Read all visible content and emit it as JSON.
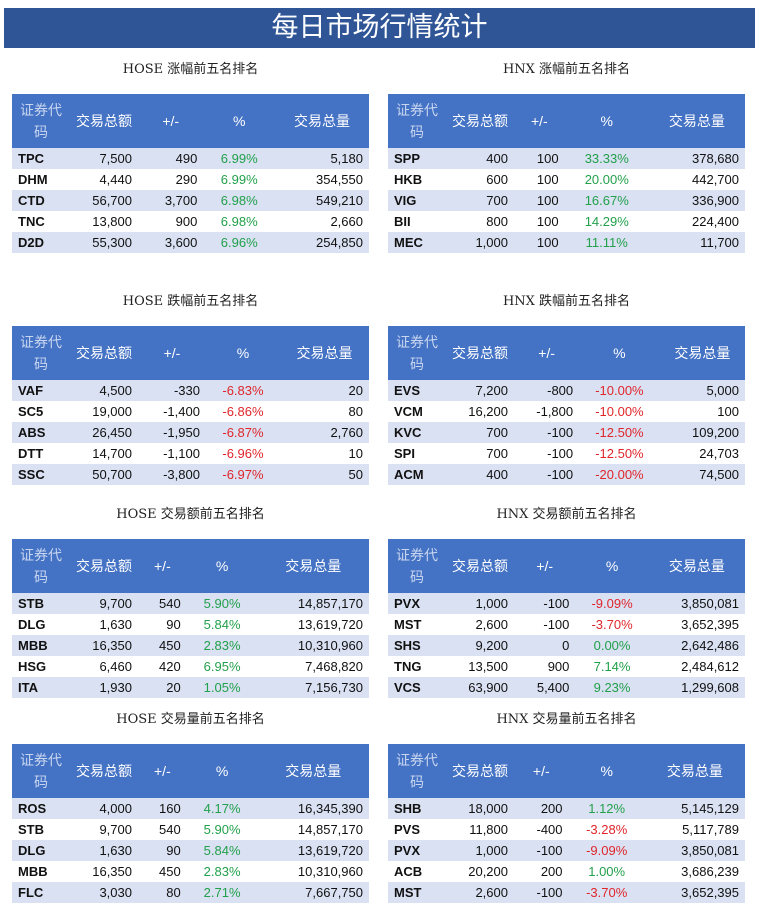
{
  "title": "每日市场行情统计",
  "headers": [
    "证券代码",
    "交易总额",
    "+/-",
    "%",
    "交易总量"
  ],
  "tables": [
    {
      "title": "HOSE 涨幅前五名排名",
      "rows": [
        [
          "TPC",
          "7,500",
          "490",
          "6.99%",
          "5,180"
        ],
        [
          "DHM",
          "4,440",
          "290",
          "6.99%",
          "354,550"
        ],
        [
          "CTD",
          "56,700",
          "3,700",
          "6.98%",
          "549,210"
        ],
        [
          "TNC",
          "13,800",
          "900",
          "6.98%",
          "2,660"
        ],
        [
          "D2D",
          "55,300",
          "3,600",
          "6.96%",
          "254,850"
        ]
      ]
    },
    {
      "title": "HNX 涨幅前五名排名",
      "rows": [
        [
          "SPP",
          "400",
          "100",
          "33.33%",
          "378,680"
        ],
        [
          "HKB",
          "600",
          "100",
          "20.00%",
          "442,700"
        ],
        [
          "VIG",
          "700",
          "100",
          "16.67%",
          "336,900"
        ],
        [
          "BII",
          "800",
          "100",
          "14.29%",
          "224,400"
        ],
        [
          "MEC",
          "1,000",
          "100",
          "11.11%",
          "11,700"
        ]
      ]
    },
    {
      "title": "HOSE 跌幅前五名排名",
      "rows": [
        [
          "VAF",
          "4,500",
          "-330",
          "-6.83%",
          "20"
        ],
        [
          "SC5",
          "19,000",
          "-1,400",
          "-6.86%",
          "80"
        ],
        [
          "ABS",
          "26,450",
          "-1,950",
          "-6.87%",
          "2,760"
        ],
        [
          "DTT",
          "14,700",
          "-1,100",
          "-6.96%",
          "10"
        ],
        [
          "SSC",
          "50,700",
          "-3,800",
          "-6.97%",
          "50"
        ]
      ]
    },
    {
      "title": "HNX 跌幅前五名排名",
      "rows": [
        [
          "EVS",
          "7,200",
          "-800",
          "-10.00%",
          "5,000"
        ],
        [
          "VCM",
          "16,200",
          "-1,800",
          "-10.00%",
          "100"
        ],
        [
          "KVC",
          "700",
          "-100",
          "-12.50%",
          "109,200"
        ],
        [
          "SPI",
          "700",
          "-100",
          "-12.50%",
          "24,703"
        ],
        [
          "ACM",
          "400",
          "-100",
          "-20.00%",
          "74,500"
        ]
      ]
    },
    {
      "title": "HOSE 交易额前五名排名",
      "rows": [
        [
          "STB",
          "9,700",
          "540",
          "5.90%",
          "14,857,170"
        ],
        [
          "DLG",
          "1,630",
          "90",
          "5.84%",
          "13,619,720"
        ],
        [
          "MBB",
          "16,350",
          "450",
          "2.83%",
          "10,310,960"
        ],
        [
          "HSG",
          "6,460",
          "420",
          "6.95%",
          "7,468,820"
        ],
        [
          "ITA",
          "1,930",
          "20",
          "1.05%",
          "7,156,730"
        ]
      ]
    },
    {
      "title": "HNX 交易额前五名排名",
      "rows": [
        [
          "PVX",
          "1,000",
          "-100",
          "-9.09%",
          "3,850,081"
        ],
        [
          "MST",
          "2,600",
          "-100",
          "-3.70%",
          "3,652,395"
        ],
        [
          "SHS",
          "9,200",
          "0",
          "0.00%",
          "2,642,486"
        ],
        [
          "TNG",
          "13,500",
          "900",
          "7.14%",
          "2,484,612"
        ],
        [
          "VCS",
          "63,900",
          "5,400",
          "9.23%",
          "1,299,608"
        ]
      ]
    },
    {
      "title": "HOSE 交易量前五名排名",
      "rows": [
        [
          "ROS",
          "4,000",
          "160",
          "4.17%",
          "16,345,390"
        ],
        [
          "STB",
          "9,700",
          "540",
          "5.90%",
          "14,857,170"
        ],
        [
          "DLG",
          "1,630",
          "90",
          "5.84%",
          "13,619,720"
        ],
        [
          "MBB",
          "16,350",
          "450",
          "2.83%",
          "10,310,960"
        ],
        [
          "FLC",
          "3,030",
          "80",
          "2.71%",
          "7,667,750"
        ]
      ]
    },
    {
      "title": "HNX 交易量前五名排名",
      "rows": [
        [
          "SHB",
          "18,000",
          "200",
          "1.12%",
          "5,145,129"
        ],
        [
          "PVS",
          "11,800",
          "-400",
          "-3.28%",
          "5,117,789"
        ],
        [
          "PVX",
          "1,000",
          "-100",
          "-9.09%",
          "3,850,081"
        ],
        [
          "ACB",
          "20,200",
          "200",
          "1.00%",
          "3,686,239"
        ],
        [
          "MST",
          "2,600",
          "-100",
          "-3.70%",
          "3,652,395"
        ]
      ]
    }
  ]
}
